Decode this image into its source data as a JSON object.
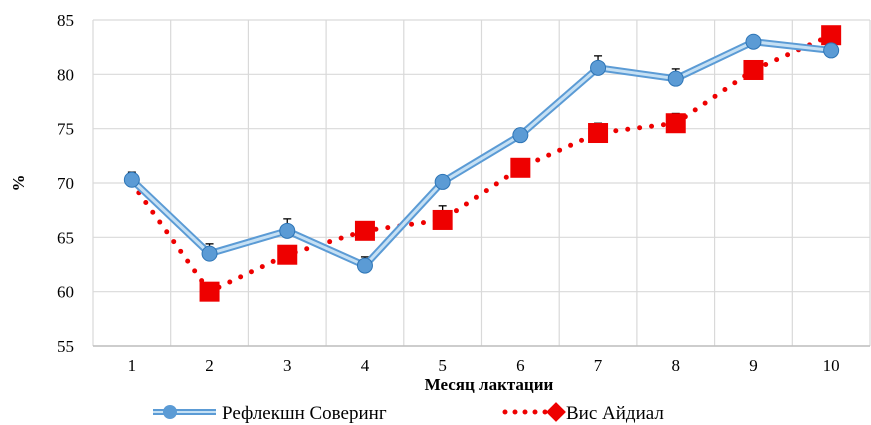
{
  "chart_data": {
    "type": "line",
    "title": "",
    "xlabel": "Месяц лактации",
    "ylabel": "%",
    "categories": [
      "1",
      "2",
      "3",
      "4",
      "5",
      "6",
      "7",
      "8",
      "9",
      "10"
    ],
    "ylim": [
      55,
      85
    ],
    "yticks": [
      55,
      60,
      65,
      70,
      75,
      80,
      85
    ],
    "grid": true,
    "legend": "bottom",
    "series": [
      {
        "name": "Рефлекшн Соверинг",
        "values": [
          70.3,
          63.5,
          65.6,
          62.4,
          70.1,
          74.4,
          80.6,
          79.6,
          83.0,
          82.2
        ],
        "errors": [
          0.7,
          0.9,
          1.1,
          0.8,
          0.0,
          0.6,
          1.1,
          0.9,
          0.5,
          0.0
        ],
        "color": "#5b9bd5",
        "style": "solid",
        "marker": "circle"
      },
      {
        "name": "Вис Айдиал",
        "values": [
          70.0,
          60.0,
          63.4,
          65.6,
          66.6,
          71.4,
          74.6,
          75.5,
          80.4,
          83.6
        ],
        "errors": [
          0.0,
          0.0,
          0.8,
          0.6,
          1.3,
          0.6,
          0.9,
          0.9,
          0.0,
          0.7
        ],
        "color": "#ee0000",
        "style": "dotted",
        "marker": "diamond"
      }
    ]
  }
}
